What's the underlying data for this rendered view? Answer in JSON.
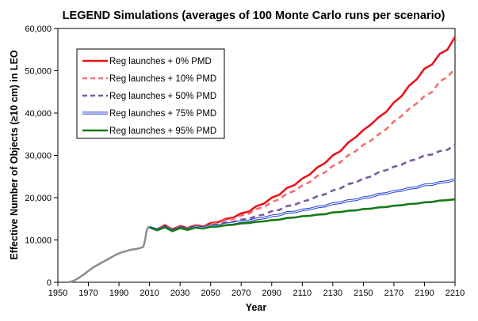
{
  "chart_data": {
    "type": "line",
    "title": "LEGEND Simulations (averages of 100 Monte Carlo runs per scenario)",
    "xlabel": "Year",
    "ylabel": "Effective Number of Objects (≥10 cm) in LEO",
    "xlim": [
      1950,
      2210
    ],
    "ylim": [
      0,
      60000
    ],
    "x_ticks": [
      1950,
      1970,
      1990,
      2010,
      2030,
      2050,
      2070,
      2090,
      2110,
      2130,
      2150,
      2170,
      2190,
      2210
    ],
    "y_ticks": [
      0,
      10000,
      20000,
      30000,
      40000,
      50000,
      60000
    ],
    "y_tick_labels": [
      "0",
      "10,000",
      "20,000",
      "30,000",
      "40,000",
      "50,000",
      "60,000"
    ],
    "grid": false,
    "legend_position": "top-left",
    "historical": {
      "color": "#8c8c8c",
      "x": [
        1957,
        1960,
        1962,
        1964,
        1966,
        1968,
        1970,
        1972,
        1974,
        1976,
        1978,
        1980,
        1982,
        1984,
        1986,
        1988,
        1990,
        1992,
        1994,
        1996,
        1998,
        2000,
        2002,
        2004,
        2006,
        2007,
        2008,
        2009,
        2010
      ],
      "y": [
        0,
        300,
        700,
        1100,
        1600,
        2100,
        2700,
        3200,
        3700,
        4100,
        4500,
        4900,
        5300,
        5700,
        6100,
        6500,
        6800,
        7100,
        7300,
        7500,
        7700,
        7800,
        7900,
        8100,
        8400,
        9800,
        12000,
        13000,
        13100
      ]
    },
    "series": [
      {
        "name": "Reg launches +  0% PMD",
        "color": "#e8141a",
        "dash": "solid",
        "style": "thick",
        "x": [
          2010,
          2015,
          2020,
          2025,
          2030,
          2035,
          2040,
          2045,
          2050,
          2055,
          2060,
          2065,
          2070,
          2075,
          2080,
          2085,
          2090,
          2095,
          2100,
          2105,
          2110,
          2115,
          2120,
          2125,
          2130,
          2135,
          2140,
          2145,
          2150,
          2155,
          2160,
          2165,
          2170,
          2175,
          2180,
          2185,
          2190,
          2195,
          2200,
          2205,
          2210
        ],
        "y": [
          13000,
          12500,
          13500,
          12500,
          13300,
          12800,
          13500,
          13200,
          14000,
          14200,
          15000,
          15300,
          16300,
          16700,
          18000,
          18600,
          20000,
          20700,
          22300,
          23000,
          24500,
          25500,
          27200,
          28200,
          30000,
          31000,
          33000,
          34300,
          36000,
          37300,
          39000,
          40300,
          42500,
          44000,
          46500,
          48000,
          50500,
          51500,
          54000,
          55000,
          58000
        ]
      },
      {
        "name": "Reg launches + 10% PMD",
        "color": "#f07070",
        "dash": "dashed",
        "style": "thick",
        "x": [
          2010,
          2015,
          2020,
          2025,
          2030,
          2035,
          2040,
          2045,
          2050,
          2055,
          2060,
          2065,
          2070,
          2075,
          2080,
          2085,
          2090,
          2095,
          2100,
          2105,
          2110,
          2115,
          2120,
          2125,
          2130,
          2135,
          2140,
          2145,
          2150,
          2155,
          2160,
          2165,
          2170,
          2175,
          2180,
          2185,
          2190,
          2195,
          2200,
          2205,
          2210
        ],
        "y": [
          13000,
          12500,
          13400,
          12400,
          13200,
          12700,
          13400,
          13100,
          13800,
          14000,
          14700,
          15000,
          15800,
          16200,
          17300,
          17800,
          19000,
          19600,
          21000,
          21600,
          22900,
          23700,
          25200,
          26000,
          27500,
          28400,
          30000,
          31000,
          32500,
          33500,
          35000,
          36200,
          38000,
          39300,
          41000,
          42300,
          44000,
          45000,
          47500,
          48500,
          50500
        ]
      },
      {
        "name": "Reg launches + 50% PMD",
        "color": "#7a5a9e",
        "dash": "dashed",
        "style": "thick",
        "x": [
          2010,
          2015,
          2020,
          2025,
          2030,
          2035,
          2040,
          2045,
          2050,
          2055,
          2060,
          2065,
          2070,
          2075,
          2080,
          2085,
          2090,
          2095,
          2100,
          2105,
          2110,
          2115,
          2120,
          2125,
          2130,
          2135,
          2140,
          2145,
          2150,
          2155,
          2160,
          2165,
          2170,
          2175,
          2180,
          2185,
          2190,
          2195,
          2200,
          2205,
          2210
        ],
        "y": [
          13000,
          12400,
          13200,
          12300,
          13000,
          12600,
          13200,
          13000,
          13500,
          13600,
          14100,
          14300,
          14800,
          15000,
          15700,
          16000,
          16800,
          17100,
          18000,
          18300,
          19100,
          19500,
          20400,
          20800,
          21700,
          22200,
          23200,
          23600,
          24500,
          25000,
          26000,
          26500,
          27300,
          27800,
          28700,
          29100,
          30000,
          30200,
          31000,
          31300,
          32500
        ]
      },
      {
        "name": "Reg launches + 75% PMD",
        "color": "#1f3fd0",
        "dash": "solid",
        "style": "double",
        "x": [
          2010,
          2015,
          2020,
          2025,
          2030,
          2035,
          2040,
          2045,
          2050,
          2055,
          2060,
          2065,
          2070,
          2075,
          2080,
          2085,
          2090,
          2095,
          2100,
          2105,
          2110,
          2115,
          2120,
          2125,
          2130,
          2135,
          2140,
          2145,
          2150,
          2155,
          2160,
          2165,
          2170,
          2175,
          2180,
          2185,
          2190,
          2195,
          2200,
          2205,
          2210
        ],
        "y": [
          13000,
          12400,
          13100,
          12200,
          12900,
          12500,
          13100,
          12900,
          13300,
          13400,
          13800,
          14000,
          14400,
          14500,
          15000,
          15200,
          15700,
          15900,
          16500,
          16600,
          17100,
          17300,
          17800,
          18000,
          18600,
          18800,
          19300,
          19500,
          20000,
          20200,
          20800,
          21000,
          21500,
          21700,
          22200,
          22400,
          23000,
          23100,
          23600,
          23800,
          24300
        ]
      },
      {
        "name": "Reg launches + 95% PMD",
        "color": "#167a16",
        "dash": "solid",
        "style": "thick",
        "x": [
          2010,
          2015,
          2020,
          2025,
          2030,
          2035,
          2040,
          2045,
          2050,
          2055,
          2060,
          2065,
          2070,
          2075,
          2080,
          2085,
          2090,
          2095,
          2100,
          2105,
          2110,
          2115,
          2120,
          2125,
          2130,
          2135,
          2140,
          2145,
          2150,
          2155,
          2160,
          2165,
          2170,
          2175,
          2180,
          2185,
          2190,
          2195,
          2200,
          2205,
          2210
        ],
        "y": [
          13000,
          12300,
          13000,
          12100,
          12800,
          12400,
          12900,
          12700,
          13100,
          13200,
          13500,
          13600,
          13900,
          14000,
          14300,
          14400,
          14700,
          14800,
          15200,
          15300,
          15600,
          15700,
          16000,
          16100,
          16500,
          16600,
          16900,
          17000,
          17300,
          17400,
          17700,
          17800,
          18100,
          18200,
          18500,
          18600,
          18900,
          19000,
          19300,
          19400,
          19600
        ]
      }
    ]
  }
}
